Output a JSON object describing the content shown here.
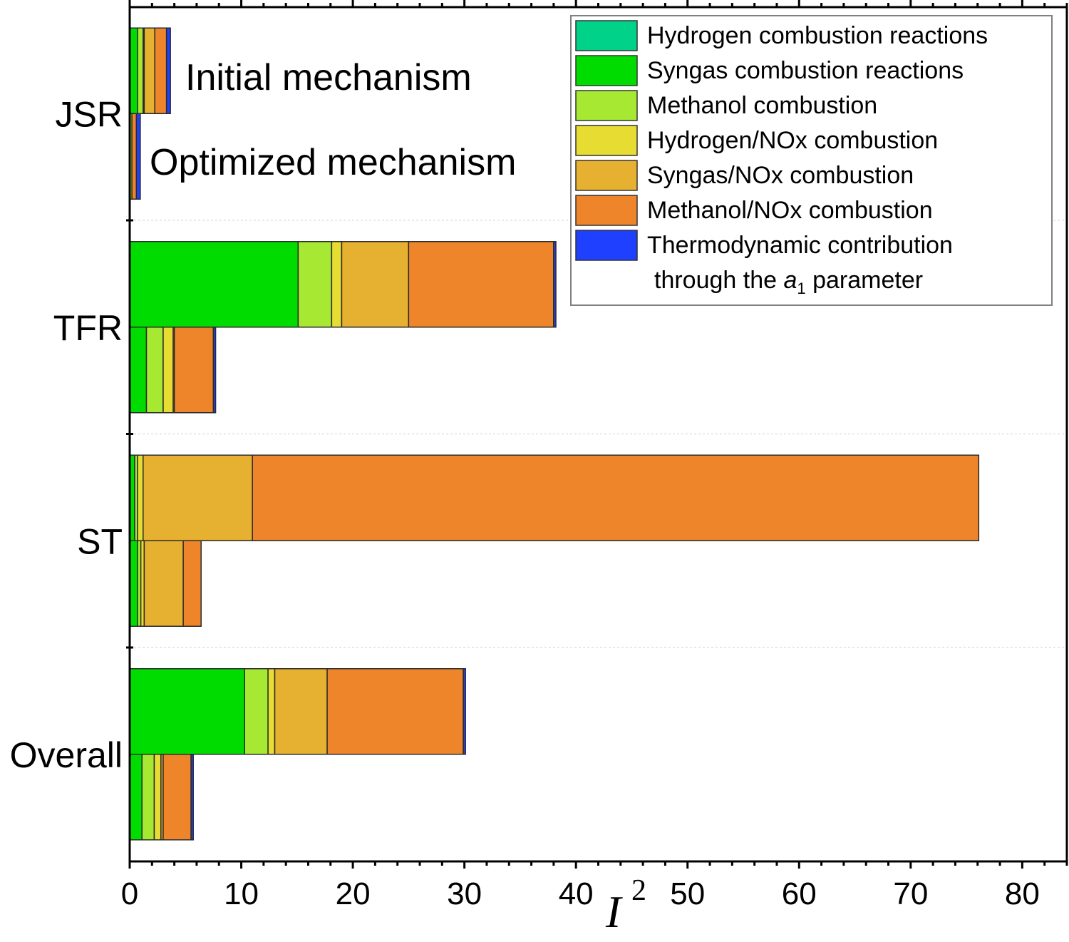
{
  "chart_data": {
    "type": "bar",
    "orientation": "horizontal",
    "stacked": true,
    "title": "",
    "xlabel": "I",
    "xlabel_superscript": "2",
    "ylabel": "",
    "xlim": [
      0,
      84
    ],
    "x_ticks": [
      0,
      10,
      20,
      30,
      40,
      50,
      60,
      70,
      80
    ],
    "x_tick_labels": [
      "0",
      "10",
      "20",
      "30",
      "40",
      "50",
      "60",
      "70",
      "80"
    ],
    "x_minor_tick_step": 2,
    "grid": false,
    "legend_position": "top-right",
    "categories": [
      "JSR",
      "TFR",
      "ST",
      "Overall"
    ],
    "bar_variants": [
      "Initial mechanism",
      "Optimized mechanism"
    ],
    "annotations": [
      "Initial mechanism",
      "Optimized mechanism"
    ],
    "series": [
      {
        "name": "Hydrogen combustion reactions",
        "color": "#00d28a",
        "initial": [
          0.05,
          0.0,
          0.0,
          0.0
        ],
        "optimized": [
          0.0,
          0.0,
          0.0,
          0.0
        ]
      },
      {
        "name": "Syngas combustion reactions",
        "color": "#00dc00",
        "initial": [
          0.65,
          15.1,
          0.45,
          10.3
        ],
        "optimized": [
          0.0,
          1.5,
          0.7,
          1.1
        ]
      },
      {
        "name": "Methanol combustion",
        "color": "#a6e832",
        "initial": [
          0.5,
          3.0,
          0.25,
          2.1
        ],
        "optimized": [
          0.2,
          1.5,
          0.3,
          1.1
        ]
      },
      {
        "name": "Hydrogen/NOx combustion",
        "color": "#e6dc32",
        "initial": [
          0.1,
          0.9,
          0.5,
          0.6
        ],
        "optimized": [
          0.0,
          0.9,
          0.3,
          0.6
        ]
      },
      {
        "name": "Syngas/NOx combustion",
        "color": "#e6b030",
        "initial": [
          0.95,
          6.0,
          9.8,
          4.7
        ],
        "optimized": [
          0.0,
          0.1,
          3.5,
          0.2
        ]
      },
      {
        "name": "Methanol/NOx combustion",
        "color": "#ef852a",
        "initial": [
          1.05,
          13.0,
          65.1,
          12.2
        ],
        "optimized": [
          0.4,
          3.5,
          1.6,
          2.5
        ]
      },
      {
        "name": "Thermodynamic contribution through the a1 parameter",
        "color": "#2040ff",
        "initial": [
          0.35,
          0.2,
          0.0,
          0.2
        ],
        "optimized": [
          0.35,
          0.2,
          0.0,
          0.2
        ]
      }
    ],
    "legend": [
      {
        "label": "Hydrogen combustion reactions",
        "color": "#00d28a"
      },
      {
        "label": "Syngas combustion reactions",
        "color": "#00dc00"
      },
      {
        "label": "Methanol combustion",
        "color": "#a6e832"
      },
      {
        "label": "Hydrogen/NOx combustion",
        "color": "#e6dc32"
      },
      {
        "label": "Syngas/NOx combustion",
        "color": "#e6b030"
      },
      {
        "label": "Methanol/NOx combustion",
        "color": "#ef852a"
      },
      {
        "label": "Thermodynamic contribution",
        "label_line2_prefix": "through the ",
        "label_line2_italic": "a",
        "label_line2_sub": "1",
        "label_line2_suffix": " parameter",
        "color": "#2040ff"
      }
    ]
  }
}
